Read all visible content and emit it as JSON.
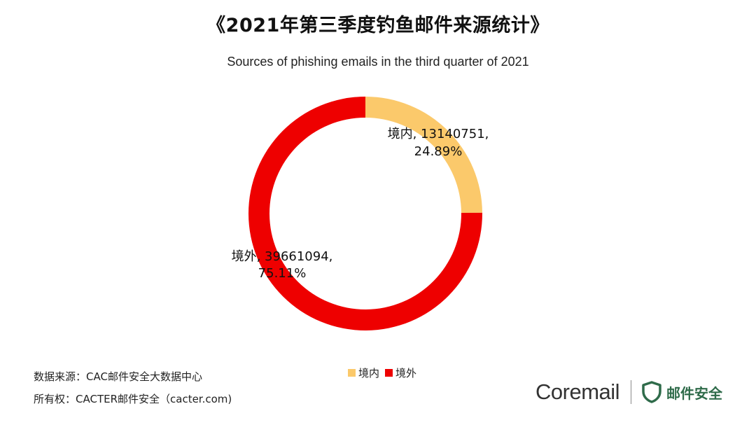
{
  "header": {
    "title": "《2021年第三季度钓鱼邮件来源统计》",
    "subtitle": "Sources of phishing emails in the third quarter of 2021"
  },
  "chart_data": {
    "type": "pie",
    "donut": true,
    "categories": [
      "境内",
      "境外"
    ],
    "values": [
      13140751,
      39661094
    ],
    "percentages": [
      "24.89%",
      "75.11%"
    ],
    "colors": [
      "#fbc96b",
      "#ee0000"
    ],
    "data_labels": [
      {
        "line1": "境内, 13140751,",
        "line2": "24.89%"
      },
      {
        "line1": "境外, 39661094,",
        "line2": "75.11%"
      }
    ],
    "legend": [
      "境内",
      "境外"
    ],
    "legend_position": "bottom"
  },
  "footer": {
    "source": "数据来源：CAC邮件安全大数据中心",
    "copyright": "所有权：CACTER邮件安全（cacter.com)"
  },
  "brand": {
    "name": "Coremail",
    "tag": "邮件安全",
    "color": "#2f6b4a"
  }
}
